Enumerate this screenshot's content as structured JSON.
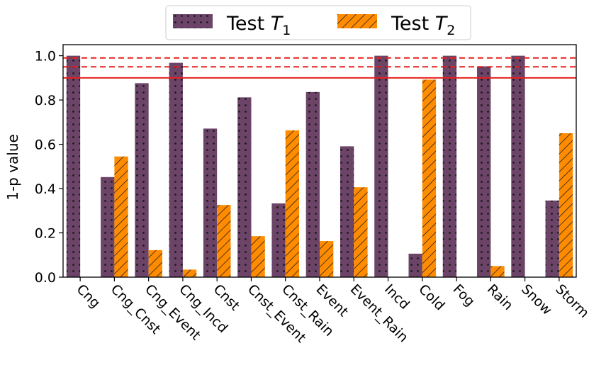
{
  "chart_data": {
    "type": "bar",
    "ylabel": "1-p value",
    "xlabel": "",
    "ylim": [
      0.0,
      1.05
    ],
    "yticks": [
      "0.0",
      "0.2",
      "0.4",
      "0.6",
      "0.8",
      "1.0"
    ],
    "categories": [
      "Cng",
      "Cng_Cnst",
      "Cng_Event",
      "Cng_Incd",
      "Cnst",
      "Cnst_Event",
      "Cnst_Rain",
      "Event",
      "Event_Rain",
      "Incd",
      "Cold",
      "Fog",
      "Rain",
      "Snow",
      "Storm"
    ],
    "series": [
      {
        "name": "Test T1",
        "legend_text": "Test ",
        "legend_var": "T",
        "legend_sub": "1",
        "color": "#6b4468",
        "pattern": "dots",
        "values": [
          1.0,
          0.452,
          0.876,
          0.968,
          0.671,
          0.812,
          0.333,
          0.836,
          0.591,
          1.0,
          0.106,
          1.0,
          0.952,
          1.0,
          0.346
        ]
      },
      {
        "name": "Test T2",
        "legend_text": "Test ",
        "legend_var": "T",
        "legend_sub": "2",
        "color": "#ff8c00",
        "pattern": "hatch",
        "values": [
          0,
          0.545,
          0.122,
          0.034,
          0.326,
          0.185,
          0.663,
          0.163,
          0.406,
          0,
          0.892,
          0,
          0.05,
          0,
          0.65
        ]
      }
    ],
    "reference_lines": [
      {
        "value": 0.99,
        "style": "dashed",
        "color": "#e8201c"
      },
      {
        "value": 0.95,
        "style": "dashed",
        "color": "#e8201c"
      },
      {
        "value": 0.9,
        "style": "solid",
        "color": "#e8201c"
      }
    ],
    "legend_placement": "top-center"
  }
}
